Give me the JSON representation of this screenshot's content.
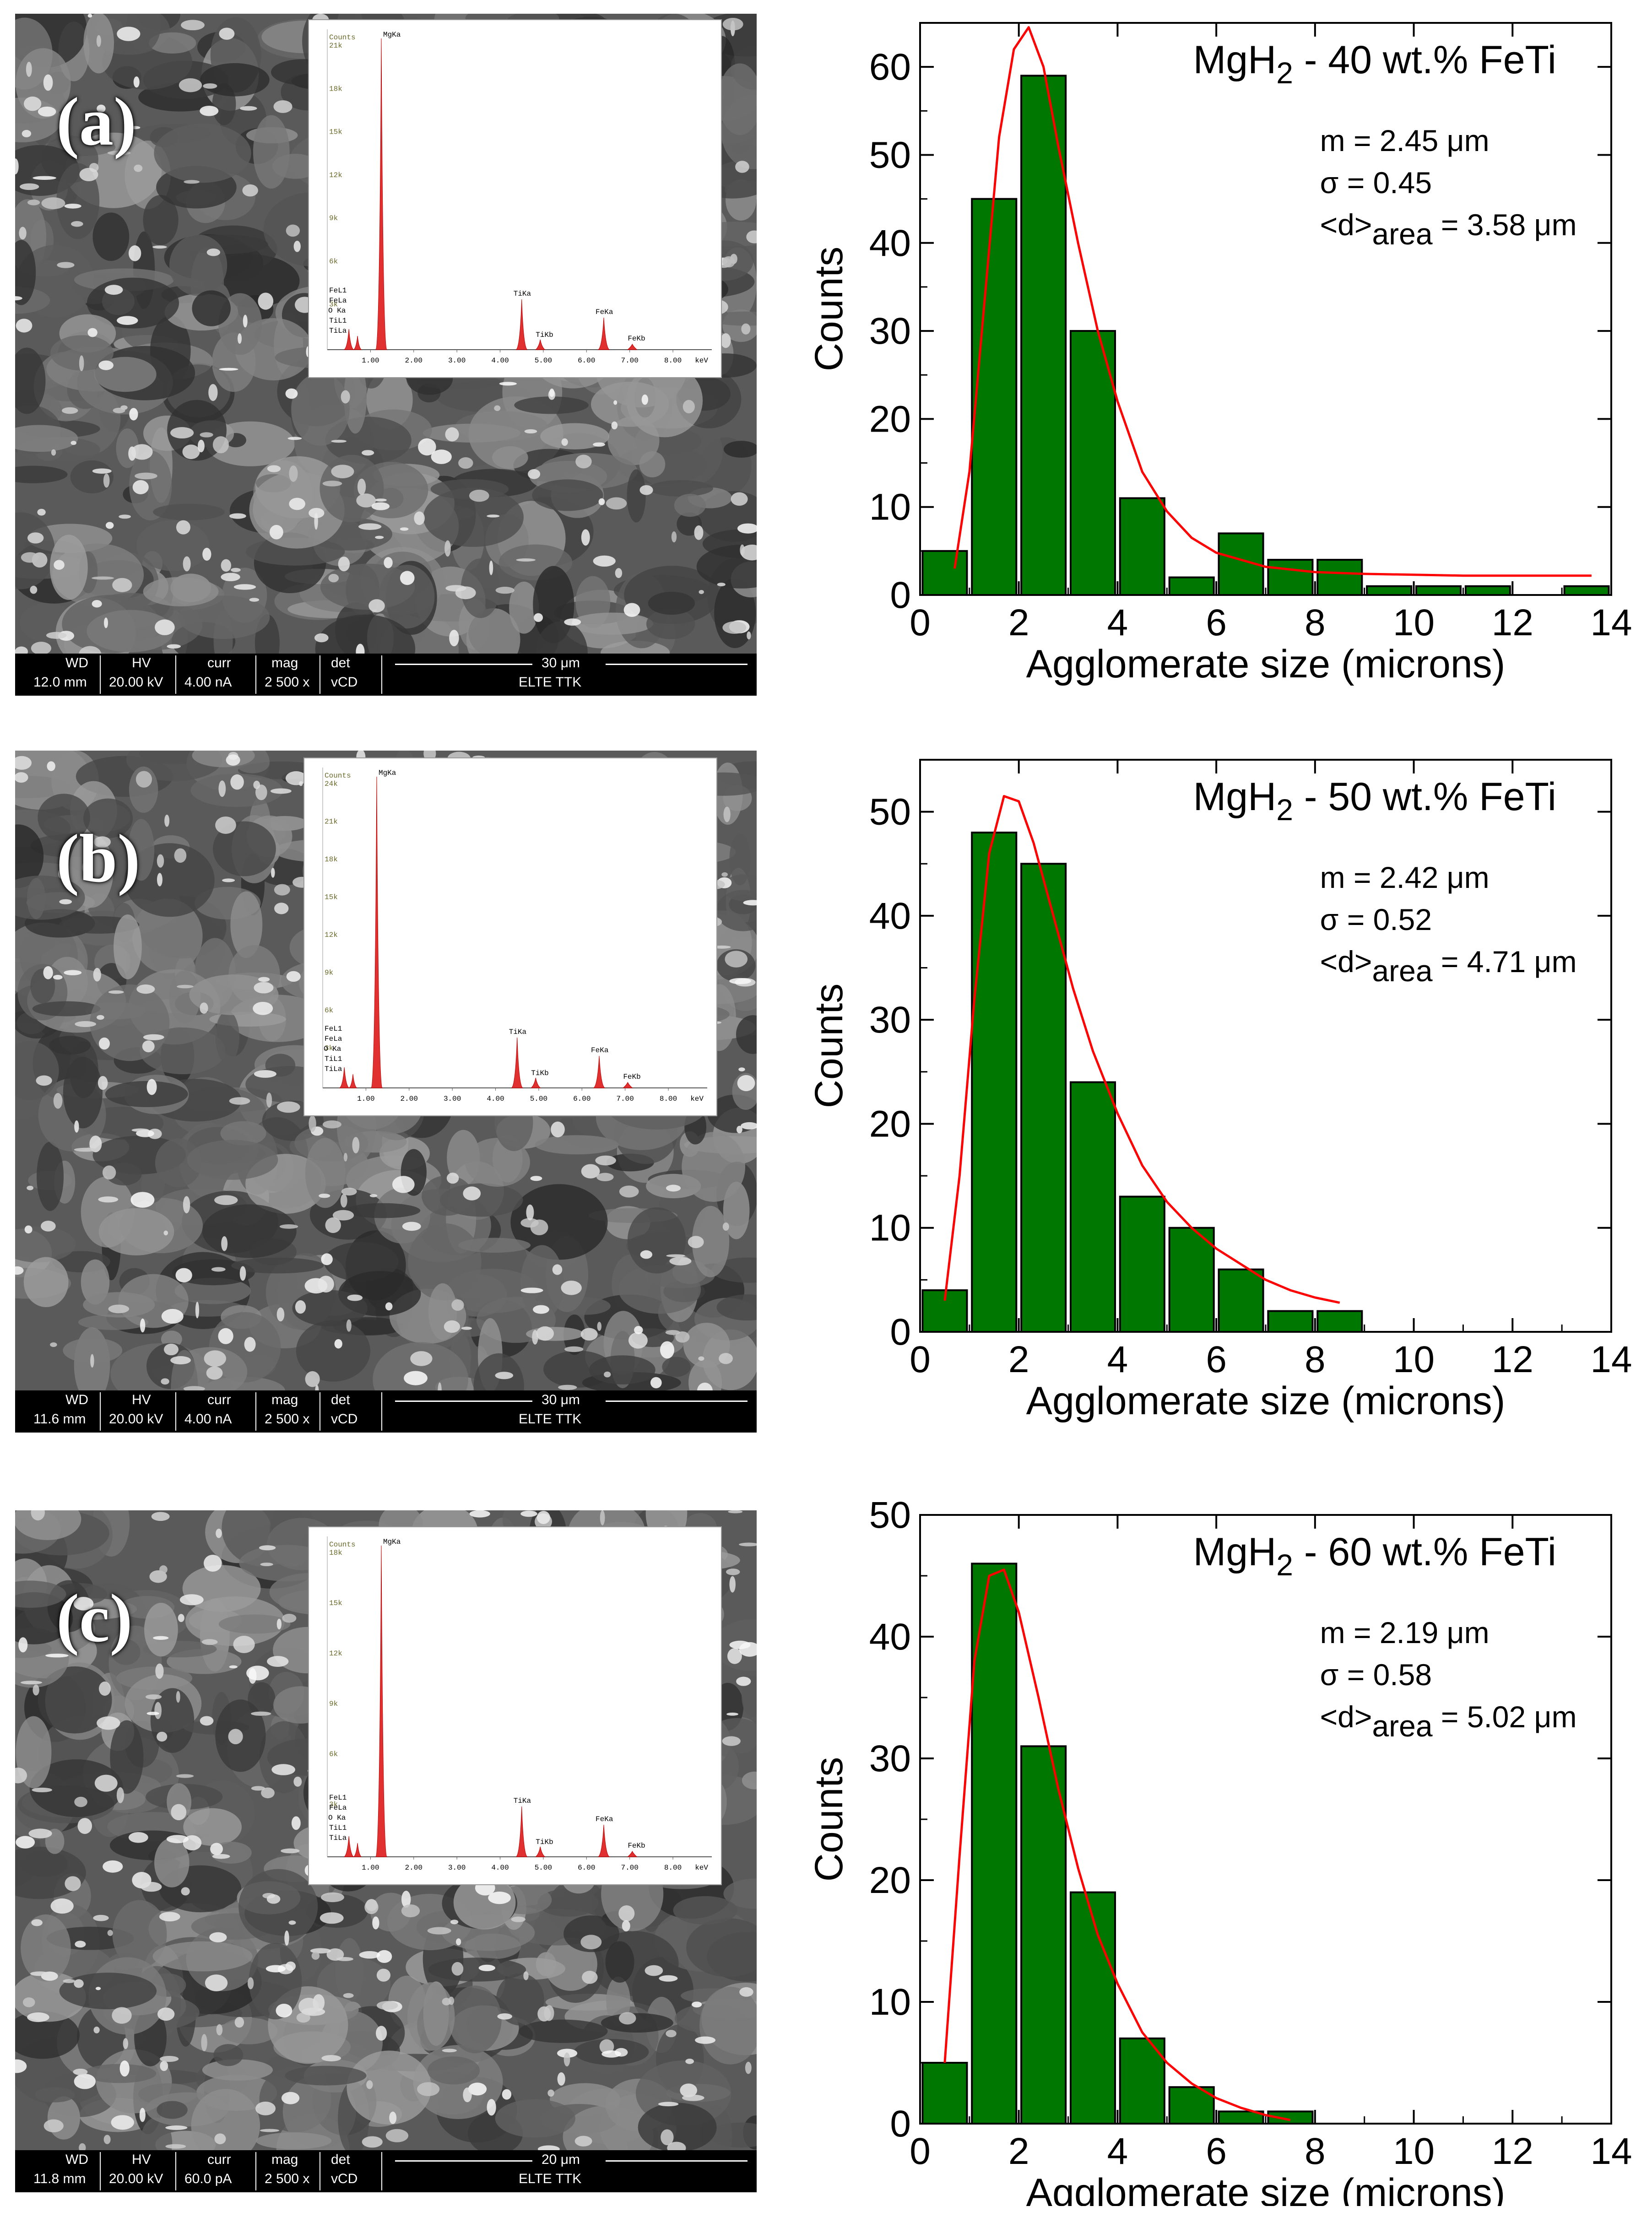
{
  "panels": [
    {
      "label": "(a)",
      "sem": {
        "headers": [
          "WD",
          "HV",
          "curr",
          "mag",
          "det"
        ],
        "values": [
          "12.0 mm",
          "20.00 kV",
          "4.00 nA",
          "2 500 x",
          "vCD"
        ],
        "scale_bar": "30 μm",
        "institution": "ELTE TTK"
      },
      "eds": {
        "ylabel": "Counts",
        "peak_main": "MgKa",
        "left_peaks": [
          "FeL1",
          "FeLa",
          "O Ka",
          "TiL1",
          "TiLa"
        ],
        "peak_tika": "TiKa",
        "peak_tikb": "TiKb",
        "peak_feka": "FeKa",
        "peak_fekb": "FeKb",
        "xticks": [
          "1.00",
          "2.00",
          "3.00",
          "4.00",
          "5.00",
          "6.00",
          "7.00",
          "8.00"
        ],
        "unit": "keV",
        "yticks": [
          "3k",
          "6k",
          "9k",
          "12k",
          "15k",
          "18k",
          "21k"
        ]
      }
    },
    {
      "label": "(b)",
      "sem": {
        "headers": [
          "WD",
          "HV",
          "curr",
          "mag",
          "det"
        ],
        "values": [
          "11.6 mm",
          "20.00 kV",
          "4.00 nA",
          "2 500 x",
          "vCD"
        ],
        "scale_bar": "30 μm",
        "institution": "ELTE TTK"
      },
      "eds": {
        "ylabel": "Counts",
        "peak_main": "MgKa",
        "left_peaks": [
          "FeL1",
          "FeLa",
          "O Ka",
          "TiL1",
          "TiLa"
        ],
        "peak_tika": "TiKa",
        "peak_tikb": "TiKb",
        "peak_feka": "FeKa",
        "peak_fekb": "FeKb",
        "xticks": [
          "1.00",
          "2.00",
          "3.00",
          "4.00",
          "5.00",
          "6.00",
          "7.00",
          "8.00"
        ],
        "unit": "keV",
        "yticks": [
          "3k",
          "6k",
          "9k",
          "12k",
          "15k",
          "18k",
          "21k",
          "24k"
        ]
      }
    },
    {
      "label": "(c)",
      "sem": {
        "headers": [
          "WD",
          "HV",
          "curr",
          "mag",
          "det"
        ],
        "values": [
          "11.8 mm",
          "20.00 kV",
          "60.0 pA",
          "2 500 x",
          "vCD"
        ],
        "scale_bar": "20 μm",
        "institution": "ELTE TTK"
      },
      "eds": {
        "ylabel": "Counts",
        "peak_main": "MgKa",
        "left_peaks": [
          "FeL1",
          "FeLa",
          "O Ka",
          "TiL1",
          "TiLa"
        ],
        "peak_tika": "TiKa",
        "peak_tikb": "TiKb",
        "peak_feka": "FeKa",
        "peak_fekb": "FeKb",
        "xticks": [
          "1.00",
          "2.00",
          "3.00",
          "4.00",
          "5.00",
          "6.00",
          "7.00",
          "8.00"
        ],
        "unit": "keV",
        "yticks": [
          "3k",
          "6k",
          "9k",
          "12k",
          "15k",
          "18k"
        ]
      }
    }
  ],
  "chart_data": [
    {
      "type": "bar",
      "title_main": "MgH",
      "title_sub": "2",
      "title_rest": " - 40 wt.% FeTi",
      "stats": {
        "m": "m = 2.45 μm",
        "sigma": "σ = 0.45",
        "d_prefix": "<d>",
        "d_sub": "area",
        "d_suffix": " = 3.58 μm"
      },
      "xlabel": "Agglomerate size (microns)",
      "ylabel": "Counts",
      "xlim": [
        0,
        14
      ],
      "ylim": [
        0,
        65
      ],
      "xticks": [
        0,
        2,
        4,
        6,
        8,
        10,
        12,
        14
      ],
      "yticks": [
        0,
        10,
        20,
        30,
        40,
        50,
        60
      ],
      "bin_width": 0.9,
      "bins": [
        0.5,
        1.5,
        2.5,
        3.5,
        4.5,
        5.5,
        6.5,
        7.5,
        8.5,
        9.5,
        10.5,
        11.5,
        13.5
      ],
      "values": [
        5,
        45,
        59,
        30,
        11,
        2,
        7,
        4,
        4,
        1,
        1,
        1,
        1
      ],
      "fit": {
        "type": "lognormal",
        "x": [
          0.7,
          1.0,
          1.3,
          1.6,
          1.9,
          2.2,
          2.5,
          2.8,
          3.2,
          3.6,
          4.0,
          4.5,
          5.0,
          5.5,
          6.0,
          7.0,
          8.0,
          9.0,
          10.0,
          11.0,
          12.0,
          13.6
        ],
        "y": [
          3,
          14,
          33,
          52,
          62,
          64.5,
          60,
          51,
          40,
          30,
          22,
          14,
          9.5,
          6.5,
          4.8,
          3.2,
          2.6,
          2.4,
          2.3,
          2.2,
          2.2,
          2.2
        ]
      }
    },
    {
      "type": "bar",
      "title_main": "MgH",
      "title_sub": "2",
      "title_rest": " - 50 wt.% FeTi",
      "stats": {
        "m": "m = 2.42 μm",
        "sigma": "σ = 0.52",
        "d_prefix": "<d>",
        "d_sub": "area",
        "d_suffix": " = 4.71 μm"
      },
      "xlabel": "Agglomerate size (microns)",
      "ylabel": "Counts",
      "xlim": [
        0,
        14
      ],
      "ylim": [
        0,
        55
      ],
      "xticks": [
        0,
        2,
        4,
        6,
        8,
        10,
        12,
        14
      ],
      "yticks": [
        0,
        10,
        20,
        30,
        40,
        50
      ],
      "bin_width": 0.9,
      "bins": [
        0.5,
        1.5,
        2.5,
        3.5,
        4.5,
        5.5,
        6.5,
        7.5,
        8.5
      ],
      "values": [
        4,
        48,
        45,
        24,
        13,
        10,
        6,
        2,
        2
      ],
      "fit": {
        "type": "lognormal",
        "x": [
          0.5,
          0.8,
          1.1,
          1.4,
          1.7,
          2.0,
          2.3,
          2.7,
          3.1,
          3.5,
          4.0,
          4.5,
          5.0,
          5.5,
          6.0,
          6.5,
          7.0,
          7.5,
          8.0,
          8.5
        ],
        "y": [
          3,
          15,
          32,
          46,
          51.5,
          51,
          47,
          40,
          33,
          27,
          21,
          16,
          12.5,
          10,
          8,
          6.5,
          5,
          4,
          3.3,
          2.8
        ]
      }
    },
    {
      "type": "bar",
      "title_main": "MgH",
      "title_sub": "2",
      "title_rest": " - 60 wt.% FeTi",
      "stats": {
        "m": "m = 2.19 μm",
        "sigma": "σ = 0.58",
        "d_prefix": "<d>",
        "d_sub": "area",
        "d_suffix": " = 5.02 μm"
      },
      "xlabel": "Agglomerate size (microns)",
      "ylabel": "Counts",
      "xlim": [
        0,
        14
      ],
      "ylim": [
        0,
        50
      ],
      "xticks": [
        0,
        2,
        4,
        6,
        8,
        10,
        12,
        14
      ],
      "yticks": [
        0,
        10,
        20,
        30,
        40,
        50
      ],
      "bin_width": 0.9,
      "bins": [
        0.5,
        1.5,
        2.5,
        3.5,
        4.5,
        5.5,
        6.5,
        7.5
      ],
      "values": [
        5,
        46,
        31,
        19,
        7,
        3,
        1,
        1
      ],
      "fit": {
        "type": "lognormal",
        "x": [
          0.5,
          0.8,
          1.1,
          1.4,
          1.7,
          2.0,
          2.4,
          2.8,
          3.2,
          3.6,
          4.0,
          4.5,
          5.0,
          5.5,
          6.0,
          6.5,
          7.0,
          7.5
        ],
        "y": [
          5,
          22,
          38,
          45,
          45.5,
          42,
          35,
          27.5,
          21,
          15.5,
          11.5,
          7.5,
          5,
          3.3,
          2.1,
          1.3,
          0.7,
          0.3
        ]
      }
    }
  ]
}
